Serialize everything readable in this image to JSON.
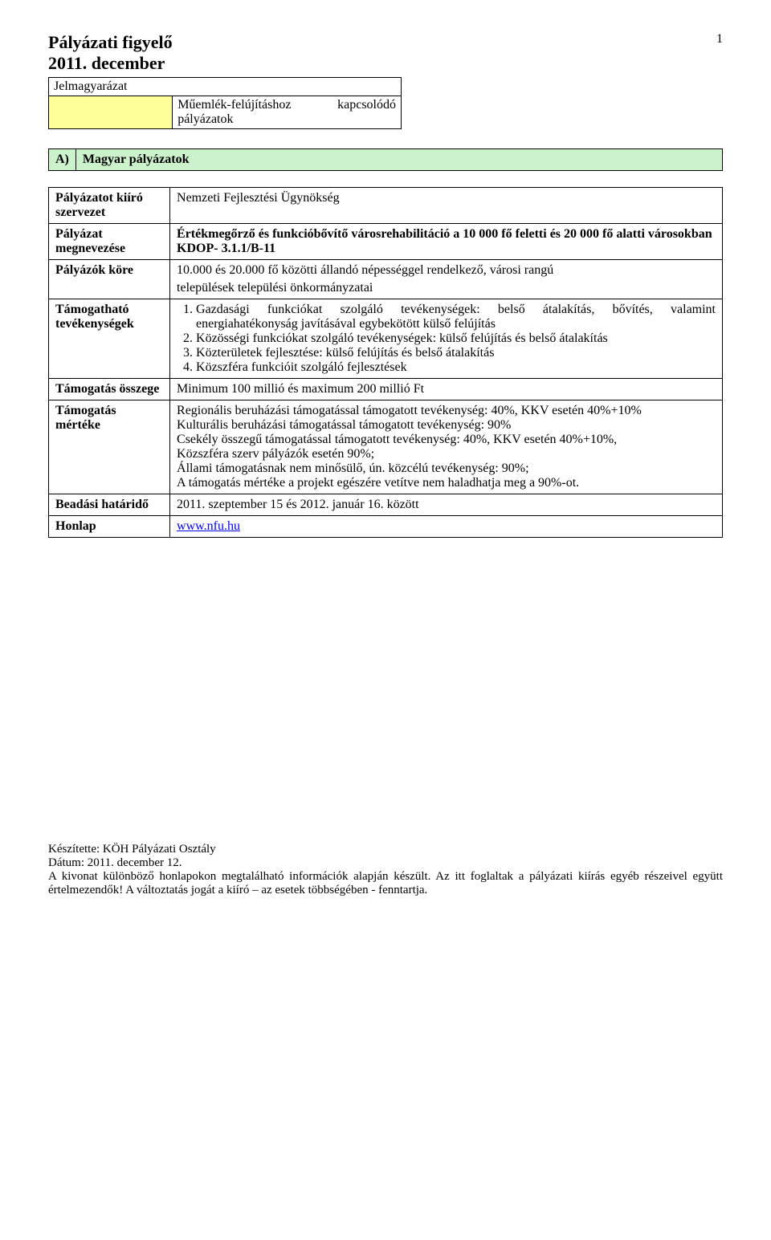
{
  "page": {
    "title_line1": "Pályázati figyelő",
    "title_line2": "2011. december",
    "page_number": "1"
  },
  "legend": {
    "header": "Jelmagyarázat",
    "swatch_color": "#ffff99",
    "desc_line1": "Műemlék-felújításhoz",
    "desc_line2": "pályázatok",
    "desc_right": "kapcsolódó"
  },
  "section": {
    "code": "A)",
    "title": "Magyar pályázatok",
    "bg_color": "#ccf2cc"
  },
  "rows": {
    "org": {
      "label": "Pályázatot kiíró szervezet",
      "value": "Nemzeti Fejlesztési Ügynökség"
    },
    "name": {
      "label": "Pályázat megnevezése",
      "line1": "Értékmegőrző és funkcióbővítő városrehabilitáció a 10 000 fő feletti és 20 000 fő alatti városokban",
      "line2": "KDOP- 3.1.1/B-11"
    },
    "applicants": {
      "label": "Pályázók köre",
      "line1": "10.000 és 20.000 fő közötti állandó népességgel rendelkező, városi rangú",
      "line2": "települések települési önkormányzatai"
    },
    "activities": {
      "label": "Támogatható tevékenységek",
      "items": [
        "Gazdasági funkciókat szolgáló tevékenységek: belső átalakítás, bővítés, valamint energiahatékonyság javításával egybekötött külső felújítás",
        "Közösségi funkciókat szolgáló tevékenységek: külső felújítás és belső átalakítás",
        "Közterületek fejlesztése: külső felújítás és belső átalakítás",
        "Közszféra funkcióit szolgáló fejlesztések"
      ]
    },
    "amount": {
      "label": "Támogatás összege",
      "value": "Minimum 100 millió és maximum 200 millió Ft"
    },
    "rate": {
      "label": "Támogatás mértéke",
      "line1": "Regionális beruházási támogatással támogatott tevékenység: 40%, KKV esetén 40%+10%",
      "line2": "Kulturális beruházási támogatással támogatott tevékenység: 90%",
      "line3": "Csekély összegű támogatással támogatott tevékenység: 40%, KKV esetén 40%+10%,",
      "line4": "Közszféra szerv pályázók esetén 90%;",
      "line5": "Állami támogatásnak nem minősülő, ún. közcélú tevékenység: 90%;",
      "line6": "A támogatás mértéke a projekt egészére vetítve nem haladhatja meg a 90%-ot."
    },
    "deadline": {
      "label": "Beadási határidő",
      "value": "2011. szeptember 15 és 2012. január 16. között"
    },
    "website": {
      "label": "Honlap",
      "value": "www.nfu.hu"
    }
  },
  "footer": {
    "line1": "Készítette: KÖH Pályázati Osztály",
    "line2": "Dátum: 2011. december 12.",
    "line3": "A kivonat különböző honlapokon megtalálható információk alapján készült. Az itt foglaltak a pályázati kiírás egyéb részeivel együtt értelmezendők! A változtatás jogát a kiíró – az esetek többségében - fenntartja."
  },
  "colors": {
    "border": "#000000",
    "text": "#000000",
    "link": "#0000ee",
    "bg": "#ffffff"
  }
}
